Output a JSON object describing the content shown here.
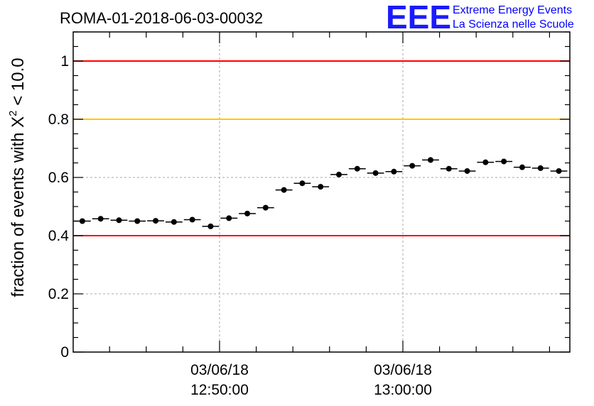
{
  "header": {
    "title": "ROMA-01-2018-06-03-00032",
    "logo_mark": "EEE",
    "logo_line1": "Extreme Energy Events",
    "logo_line2": "La Scienza nelle Scuole"
  },
  "colors": {
    "red_line": "#ff0000",
    "yellow_line": "#ffc800",
    "logo_blue": "#1a1aff",
    "grid": "#aaaaaa"
  },
  "chart_data": {
    "type": "scatter",
    "ylabel_prefix": "fraction of events with ",
    "ylabel_symbol": "X",
    "ylabel_sup": "2",
    "ylabel_suffix": " < 10.0",
    "ylim": [
      0,
      1.1
    ],
    "y_ticks": [
      0,
      0.2,
      0.4,
      0.6,
      0.8,
      1
    ],
    "y_tick_labels": [
      "0",
      "0.2",
      "0.4",
      "0.6",
      "0.8",
      "1"
    ],
    "grid": true,
    "x_major_ticks": [
      {
        "date": "03/06/18",
        "time": "12:50:00"
      },
      {
        "date": "03/06/18",
        "time": "13:00:00"
      }
    ],
    "reference_lines": [
      {
        "y": 1.0,
        "color": "red"
      },
      {
        "y": 0.8,
        "color": "yellow"
      },
      {
        "y": 0.4,
        "color": "red"
      }
    ],
    "points": [
      0.45,
      0.458,
      0.453,
      0.45,
      0.451,
      0.447,
      0.455,
      0.432,
      0.46,
      0.476,
      0.496,
      0.557,
      0.58,
      0.568,
      0.61,
      0.63,
      0.615,
      0.62,
      0.64,
      0.66,
      0.63,
      0.622,
      0.652,
      0.655,
      0.635,
      0.632,
      0.622
    ],
    "y_errors": [
      0.006,
      0.006,
      0.006,
      0.006,
      0.006,
      0.006,
      0.006,
      0.006,
      0.006,
      0.006,
      0.006,
      0.006,
      0.006,
      0.006,
      0.006,
      0.006,
      0.006,
      0.006,
      0.006,
      0.006,
      0.006,
      0.006,
      0.006,
      0.006,
      0.006,
      0.006,
      0.006
    ]
  }
}
